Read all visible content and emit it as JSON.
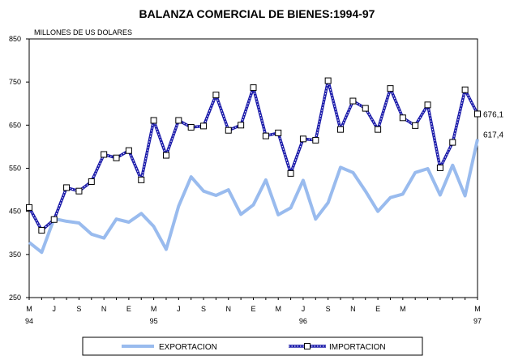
{
  "chart_data": {
    "type": "line",
    "title": "BALANZA COMERCIAL DE BIENES:1994-97",
    "ylabel": "MILLONES DE US DOLARES",
    "ylim": [
      250,
      850
    ],
    "yticks": [
      250,
      350,
      450,
      550,
      650,
      750,
      850
    ],
    "grid": false,
    "x_tick_labels": [
      "M",
      "J",
      "S",
      "N",
      "E",
      "M",
      "J",
      "S",
      "N",
      "E",
      "M",
      "J",
      "S",
      "N",
      "E",
      "M",
      "M"
    ],
    "x_year_labels": [
      "94",
      "95",
      "96",
      "97"
    ],
    "series": [
      {
        "name": "EXPORTACION",
        "color": "#99bbee",
        "values": [
          378,
          355,
          433,
          427,
          423,
          397,
          388,
          432,
          425,
          445,
          415,
          362,
          462,
          530,
          497,
          487,
          500,
          443,
          465,
          523,
          442,
          458,
          522,
          432,
          470,
          552,
          540,
          497,
          450,
          482,
          490,
          540,
          549,
          488,
          557,
          486,
          617.4
        ]
      },
      {
        "name": "IMPORTACION",
        "color": "#1a1aaa",
        "values": [
          459,
          406,
          431,
          505,
          497,
          519,
          582,
          574,
          591,
          523,
          661,
          580,
          661,
          645,
          648,
          720,
          638,
          650,
          737,
          625,
          632,
          538,
          618,
          615,
          753,
          640,
          706,
          689,
          640,
          735,
          667,
          649,
          697,
          551,
          610,
          732,
          676.1
        ]
      }
    ],
    "end_labels": [
      "676,1",
      "617,4"
    ],
    "legend_position": "bottom"
  }
}
